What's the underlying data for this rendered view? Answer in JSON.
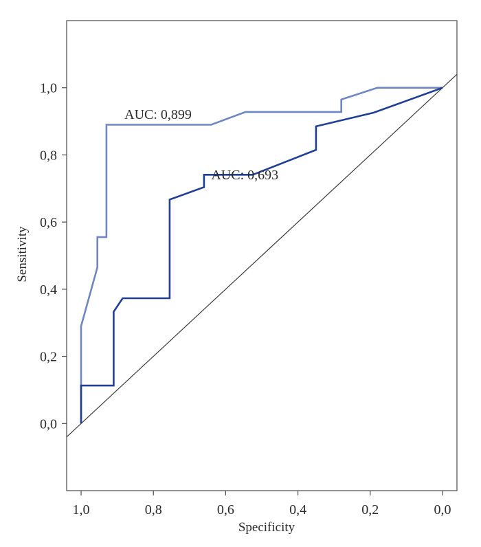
{
  "chart_data": {
    "type": "line",
    "title": "",
    "xlabel": "Specificity",
    "ylabel": "Sensitivity",
    "x_reversed": true,
    "xlim": [
      1.04,
      -0.04
    ],
    "ylim": [
      -0.2,
      1.2
    ],
    "x_ticks": [
      1.0,
      0.8,
      0.6,
      0.4,
      0.2,
      0.0
    ],
    "x_tick_labels": [
      "1,0",
      "0,8",
      "0,6",
      "0,4",
      "0,2",
      "0,0"
    ],
    "y_ticks": [
      0.0,
      0.2,
      0.4,
      0.6,
      0.8,
      1.0
    ],
    "y_tick_labels": [
      "0,0",
      "0,2",
      "0,4",
      "0,6",
      "0,8",
      "1,0"
    ],
    "grid": false,
    "reference_line": {
      "x": [
        1.04,
        -0.04
      ],
      "y": [
        -0.04,
        1.04
      ],
      "color": "#3a3a3a"
    },
    "series": [
      {
        "color": "#6f86c4",
        "annotation": {
          "text": "AUC: 0,899",
          "x": 0.88,
          "y": 0.895
        },
        "points": [
          {
            "x": 1.0,
            "y": 0.0
          },
          {
            "x": 1.0,
            "y": 0.29
          },
          {
            "x": 0.955,
            "y": 0.465
          },
          {
            "x": 0.955,
            "y": 0.555
          },
          {
            "x": 0.93,
            "y": 0.555
          },
          {
            "x": 0.93,
            "y": 0.89
          },
          {
            "x": 0.64,
            "y": 0.89
          },
          {
            "x": 0.545,
            "y": 0.928
          },
          {
            "x": 0.28,
            "y": 0.928
          },
          {
            "x": 0.28,
            "y": 0.965
          },
          {
            "x": 0.18,
            "y": 1.0
          },
          {
            "x": 0.0,
            "y": 1.0
          }
        ]
      },
      {
        "color": "#1f3f96",
        "annotation": {
          "text": "AUC: 0,693",
          "x": 0.64,
          "y": 0.715
        },
        "points": [
          {
            "x": 1.0,
            "y": 0.0
          },
          {
            "x": 1.0,
            "y": 0.113
          },
          {
            "x": 0.91,
            "y": 0.113
          },
          {
            "x": 0.91,
            "y": 0.333
          },
          {
            "x": 0.885,
            "y": 0.373
          },
          {
            "x": 0.755,
            "y": 0.373
          },
          {
            "x": 0.755,
            "y": 0.667
          },
          {
            "x": 0.66,
            "y": 0.704
          },
          {
            "x": 0.66,
            "y": 0.741
          },
          {
            "x": 0.525,
            "y": 0.741
          },
          {
            "x": 0.35,
            "y": 0.815
          },
          {
            "x": 0.35,
            "y": 0.885
          },
          {
            "x": 0.19,
            "y": 0.926
          },
          {
            "x": 0.0,
            "y": 1.0
          }
        ]
      }
    ]
  }
}
